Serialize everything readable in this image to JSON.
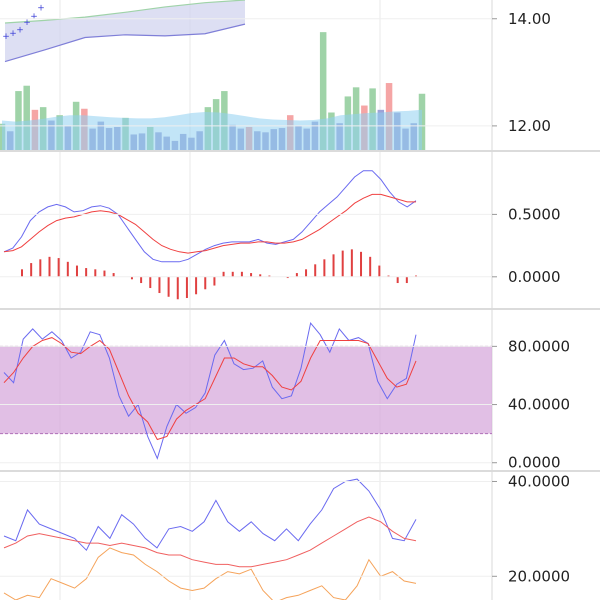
{
  "chart_data": [
    {
      "type": "candlestick-volume",
      "ylim": [
        11.55,
        14.35
      ],
      "price_ticks": [
        14.0,
        12.0
      ],
      "price_tick_labels": [
        "14.00",
        "12.00"
      ],
      "cloud_upper": [
        13.92,
        13.97,
        14.03,
        14.12,
        14.22,
        14.3,
        14.35
      ],
      "cloud_lower": [
        13.2,
        13.42,
        13.65,
        13.7,
        13.68,
        13.72,
        13.9
      ],
      "sar_points": [
        13.62,
        13.68,
        13.74,
        13.88,
        14.0,
        14.15
      ],
      "volume_ylim": [
        11.55,
        14.35
      ],
      "volume_bars": [
        {
          "v": 12.04,
          "c": "#9fd3a8"
        },
        {
          "v": 11.9,
          "c": "#9ea2d6"
        },
        {
          "v": 12.65,
          "c": "#9fd3a8"
        },
        {
          "v": 12.75,
          "c": "#9fd3a8"
        },
        {
          "v": 12.3,
          "c": "#f5a5a5"
        },
        {
          "v": 12.35,
          "c": "#9fd3a8"
        },
        {
          "v": 12.1,
          "c": "#9ea2d6"
        },
        {
          "v": 12.2,
          "c": "#9fd3a8"
        },
        {
          "v": 12.0,
          "c": "#9ea2d6"
        },
        {
          "v": 12.45,
          "c": "#9fd3a8"
        },
        {
          "v": 12.32,
          "c": "#f5a5a5"
        },
        {
          "v": 11.95,
          "c": "#9ea2d6"
        },
        {
          "v": 12.08,
          "c": "#9ea2d6"
        },
        {
          "v": 11.96,
          "c": "#9ea2d6"
        },
        {
          "v": 11.98,
          "c": "#9ea2d6"
        },
        {
          "v": 12.15,
          "c": "#9fd3a8"
        },
        {
          "v": 11.84,
          "c": "#9ea2d6"
        },
        {
          "v": 11.86,
          "c": "#9ea2d6"
        },
        {
          "v": 11.98,
          "c": "#9fd3a8"
        },
        {
          "v": 11.88,
          "c": "#9ea2d6"
        },
        {
          "v": 11.8,
          "c": "#9ea2d6"
        },
        {
          "v": 11.72,
          "c": "#9ea2d6"
        },
        {
          "v": 11.85,
          "c": "#9ea2d6"
        },
        {
          "v": 11.78,
          "c": "#9ea2d6"
        },
        {
          "v": 11.9,
          "c": "#9ea2d6"
        },
        {
          "v": 12.35,
          "c": "#9fd3a8"
        },
        {
          "v": 12.5,
          "c": "#9fd3a8"
        },
        {
          "v": 12.65,
          "c": "#9fd3a8"
        },
        {
          "v": 12.02,
          "c": "#9ea2d6"
        },
        {
          "v": 11.95,
          "c": "#9ea2d6"
        },
        {
          "v": 11.98,
          "c": "#f5a5a5"
        },
        {
          "v": 11.9,
          "c": "#9ea2d6"
        },
        {
          "v": 11.88,
          "c": "#9ea2d6"
        },
        {
          "v": 11.94,
          "c": "#9ea2d6"
        },
        {
          "v": 11.96,
          "c": "#9ea2d6"
        },
        {
          "v": 12.2,
          "c": "#f5a5a5"
        },
        {
          "v": 12.0,
          "c": "#9ea2d6"
        },
        {
          "v": 11.95,
          "c": "#9ea2d6"
        },
        {
          "v": 12.08,
          "c": "#9ea2d6"
        },
        {
          "v": 13.75,
          "c": "#9fd3a8"
        },
        {
          "v": 12.25,
          "c": "#9fd3a8"
        },
        {
          "v": 12.05,
          "c": "#9ea2d6"
        },
        {
          "v": 12.55,
          "c": "#9fd3a8"
        },
        {
          "v": 12.72,
          "c": "#9fd3a8"
        },
        {
          "v": 12.38,
          "c": "#f5a5a5"
        },
        {
          "v": 12.7,
          "c": "#9fd3a8"
        },
        {
          "v": 12.3,
          "c": "#9ea2d6"
        },
        {
          "v": 12.8,
          "c": "#f5a5a5"
        },
        {
          "v": 12.25,
          "c": "#9ea2d6"
        },
        {
          "v": 11.95,
          "c": "#9ea2d6"
        },
        {
          "v": 12.05,
          "c": "#9ea2d6"
        },
        {
          "v": 12.6,
          "c": "#9fd3a8"
        }
      ],
      "volume_ma": [
        12.1,
        12.08,
        12.1,
        12.13,
        12.17,
        12.2,
        12.2,
        12.18,
        12.16,
        12.15,
        12.14,
        12.14,
        12.16,
        12.2,
        12.24,
        12.26,
        12.25,
        12.22,
        12.18,
        12.14,
        12.12,
        12.11,
        12.1,
        12.11,
        12.14,
        12.2,
        12.22,
        12.24,
        12.25,
        12.27,
        12.28,
        12.3
      ],
      "colors": {
        "cloud_fill": "#cfd1ee",
        "cloud_green": "#9fd3a8",
        "cloud_red": "#f5a5a5",
        "sar": "#3b3fd6",
        "volume_ma_fill": "#8fd0f0"
      }
    },
    {
      "type": "line",
      "name_hidden": "macd",
      "ylim": [
        -0.25,
        1.0
      ],
      "ticks": [
        0.5,
        0.0
      ],
      "tick_labels": [
        "0.5000",
        "0.0000"
      ],
      "series": [
        {
          "values": [
            0.2,
            0.23,
            0.32,
            0.45,
            0.52,
            0.56,
            0.58,
            0.56,
            0.52,
            0.53,
            0.56,
            0.57,
            0.55,
            0.5,
            0.4,
            0.3,
            0.2,
            0.14,
            0.12,
            0.12,
            0.12,
            0.14,
            0.18,
            0.22,
            0.25,
            0.27,
            0.28,
            0.28,
            0.28,
            0.3,
            0.27,
            0.26,
            0.28,
            0.3,
            0.36,
            0.44,
            0.52,
            0.58,
            0.64,
            0.72,
            0.8,
            0.85,
            0.85,
            0.78,
            0.68,
            0.6,
            0.56,
            0.61
          ],
          "color": "#6a6af0"
        },
        {
          "values": [
            0.2,
            0.21,
            0.24,
            0.3,
            0.36,
            0.41,
            0.45,
            0.47,
            0.48,
            0.5,
            0.52,
            0.53,
            0.52,
            0.5,
            0.46,
            0.42,
            0.36,
            0.3,
            0.25,
            0.22,
            0.2,
            0.19,
            0.2,
            0.21,
            0.23,
            0.25,
            0.26,
            0.27,
            0.27,
            0.28,
            0.28,
            0.27,
            0.27,
            0.28,
            0.3,
            0.34,
            0.38,
            0.43,
            0.48,
            0.53,
            0.59,
            0.63,
            0.66,
            0.66,
            0.64,
            0.62,
            0.6,
            0.6
          ],
          "color": "#f04040"
        }
      ],
      "hist": [
        0.06,
        0.11,
        0.14,
        0.16,
        0.15,
        0.12,
        0.09,
        0.07,
        0.06,
        0.05,
        0.03,
        0.0,
        -0.02,
        -0.05,
        -0.09,
        -0.13,
        -0.16,
        -0.18,
        -0.17,
        -0.14,
        -0.1,
        -0.07,
        0.04,
        0.04,
        0.04,
        0.03,
        0.02,
        0.01,
        0.0,
        -0.01,
        0.03,
        0.06,
        0.1,
        0.14,
        0.18,
        0.21,
        0.22,
        0.2,
        0.16,
        0.09,
        0.01,
        -0.05,
        -0.05,
        0.01
      ],
      "hist_color": "#e04040"
    },
    {
      "type": "line",
      "name_hidden": "stochastic",
      "ylim": [
        -5,
        105
      ],
      "ticks": [
        80,
        40,
        0
      ],
      "tick_labels": [
        "80.0000",
        "40.0000",
        "0.0000"
      ],
      "band": [
        20,
        80
      ],
      "band_color": "#d7a9dc",
      "series": [
        {
          "values": [
            62,
            55,
            85,
            92,
            85,
            90,
            84,
            72,
            76,
            90,
            88,
            72,
            46,
            32,
            40,
            18,
            3,
            25,
            40,
            34,
            38,
            48,
            74,
            84,
            68,
            64,
            65,
            70,
            52,
            44,
            46,
            65,
            96,
            88,
            76,
            92,
            84,
            86,
            82,
            56,
            44,
            54,
            58,
            88
          ],
          "color": "#6a6af0"
        },
        {
          "values": [
            55,
            62,
            72,
            80,
            84,
            86,
            82,
            76,
            75,
            80,
            84,
            78,
            62,
            46,
            34,
            28,
            16,
            18,
            30,
            36,
            40,
            44,
            58,
            72,
            72,
            68,
            66,
            66,
            60,
            52,
            50,
            56,
            72,
            84,
            84,
            84,
            84,
            84,
            82,
            70,
            58,
            52,
            54,
            70
          ],
          "color": "#f04040"
        }
      ]
    },
    {
      "type": "line",
      "name_hidden": "adx",
      "ylim": [
        15,
        42
      ],
      "ticks": [
        40,
        20
      ],
      "tick_labels": [
        "40.0000",
        "20.0000"
      ],
      "series": [
        {
          "values": [
            28.5,
            27.5,
            34.0,
            31.0,
            30.0,
            29.0,
            28.0,
            25.5,
            30.5,
            28.0,
            33.0,
            31.0,
            28.0,
            26.0,
            30.0,
            30.5,
            29.5,
            31.5,
            36.0,
            31.5,
            29.5,
            31.5,
            29.0,
            27.5,
            30.0,
            27.5,
            31.0,
            34.0,
            38.5,
            40.0,
            40.5,
            38.0,
            34.0,
            28.0,
            27.5,
            32.0
          ],
          "color": "#6a6af0"
        },
        {
          "values": [
            26.0,
            27.0,
            28.5,
            29.0,
            28.5,
            28.0,
            27.5,
            27.0,
            27.0,
            26.5,
            27.0,
            26.5,
            26.0,
            25.0,
            24.5,
            24.5,
            23.5,
            23.0,
            22.5,
            22.5,
            22.0,
            22.0,
            22.5,
            23.0,
            23.5,
            24.5,
            25.5,
            27.0,
            28.5,
            30.0,
            31.5,
            32.5,
            31.5,
            29.5,
            28.0,
            27.5
          ],
          "color": "#f06060"
        },
        {
          "values": [
            16.5,
            15.0,
            16.0,
            15.5,
            19.5,
            18.5,
            17.5,
            19.5,
            24.0,
            26.0,
            25.0,
            24.5,
            22.5,
            21.0,
            19.0,
            17.5,
            17.0,
            17.5,
            19.5,
            21.0,
            20.5,
            21.5,
            17.0,
            14.5,
            15.5,
            16.0,
            17.0,
            18.0,
            15.5,
            15.0,
            18.0,
            23.5,
            20.0,
            21.0,
            19.0,
            18.5
          ],
          "color": "#f5a35a"
        }
      ]
    }
  ]
}
